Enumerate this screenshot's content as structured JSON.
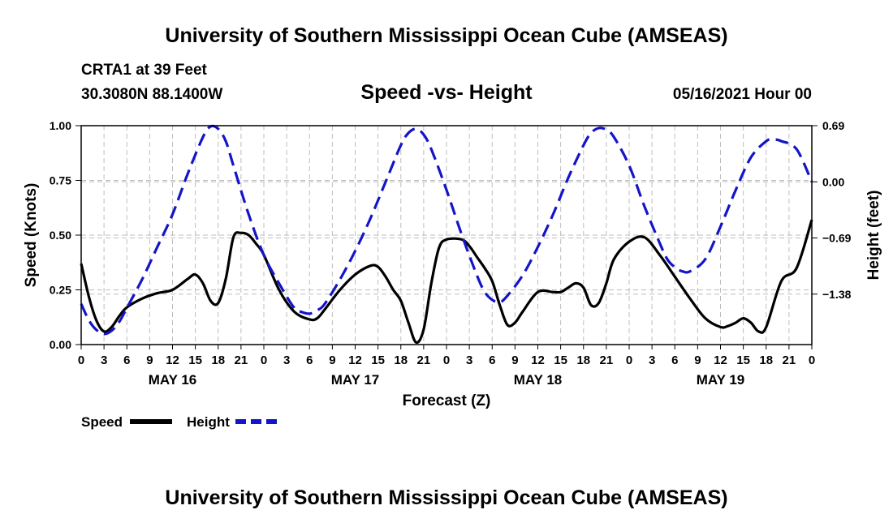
{
  "header": {
    "title": "University of Southern Mississippi Ocean Cube (AMSEAS)",
    "station": "CRTA1 at 39 Feet",
    "coords": "30.3080N  88.1400W",
    "plot_title": "Speed -vs- Height",
    "datetime": "05/16/2021 Hour 00"
  },
  "footer": {
    "title": "University of Southern Mississippi Ocean Cube (AMSEAS)"
  },
  "colors": {
    "speed": "#000000",
    "height": "#1414c8",
    "grid": "#bdbdbd"
  },
  "chart_data": {
    "type": "line",
    "title": "Speed -vs- Height",
    "xlabel": "Forecast (Z)",
    "ylabel_left": "Speed (Knots)",
    "ylabel_right": "Height (feet)",
    "x_range_hours": [
      0,
      96
    ],
    "x_tick_hours": [
      0,
      3,
      6,
      9,
      12,
      15,
      18,
      21,
      24,
      27,
      30,
      33,
      36,
      39,
      42,
      45,
      48,
      51,
      54,
      57,
      60,
      63,
      66,
      69,
      72,
      75,
      78,
      81,
      84,
      87,
      90,
      93,
      96
    ],
    "x_tick_labels": [
      "0",
      "3",
      "6",
      "9",
      "12",
      "15",
      "18",
      "21",
      "0",
      "3",
      "6",
      "9",
      "12",
      "15",
      "18",
      "21",
      "0",
      "3",
      "6",
      "9",
      "12",
      "15",
      "18",
      "21",
      "0",
      "3",
      "6",
      "9",
      "12",
      "15",
      "18",
      "21",
      "0"
    ],
    "day_labels": [
      {
        "hour": 12,
        "label": "MAY 16"
      },
      {
        "hour": 36,
        "label": "MAY 17"
      },
      {
        "hour": 60,
        "label": "MAY 18"
      },
      {
        "hour": 84,
        "label": "MAY 19"
      }
    ],
    "y_left": {
      "range": [
        0,
        1
      ],
      "ticks": [
        0,
        0.25,
        0.5,
        0.75,
        1
      ],
      "tick_labels": [
        "0.00",
        "0.25",
        "0.50",
        "0.75",
        "1.00"
      ]
    },
    "y_right": {
      "range": [
        -2.0,
        0.69
      ],
      "ticks": [
        -1.38,
        -0.69,
        0,
        0.69
      ],
      "tick_labels": [
        "−1.38",
        "−0.69",
        "0.00",
        "0.69"
      ]
    },
    "series": [
      {
        "name": "Speed",
        "axis": "left",
        "style": "solid",
        "x": [
          0,
          1,
          2,
          3,
          4,
          5,
          6,
          8,
          10,
          12,
          14,
          15,
          16,
          17,
          18,
          19,
          20,
          21,
          22,
          23,
          24,
          26,
          28,
          30,
          31,
          32,
          34,
          36,
          38,
          39,
          40,
          41,
          42,
          43,
          44,
          45,
          46,
          47,
          48,
          50,
          51,
          52,
          53,
          54,
          55,
          56,
          57,
          58,
          60,
          62,
          63,
          64,
          65,
          66,
          67,
          68,
          69,
          70,
          72,
          74,
          76,
          78,
          80,
          82,
          84,
          85,
          86,
          87,
          88,
          89,
          90,
          92,
          94,
          96
        ],
        "values": [
          0.37,
          0.22,
          0.11,
          0.06,
          0.08,
          0.13,
          0.17,
          0.21,
          0.235,
          0.25,
          0.3,
          0.32,
          0.28,
          0.2,
          0.19,
          0.3,
          0.49,
          0.51,
          0.5,
          0.46,
          0.41,
          0.25,
          0.15,
          0.115,
          0.12,
          0.16,
          0.25,
          0.32,
          0.36,
          0.355,
          0.31,
          0.25,
          0.2,
          0.1,
          0.01,
          0.07,
          0.28,
          0.44,
          0.48,
          0.48,
          0.45,
          0.4,
          0.35,
          0.29,
          0.18,
          0.09,
          0.1,
          0.15,
          0.24,
          0.24,
          0.24,
          0.26,
          0.28,
          0.26,
          0.18,
          0.19,
          0.28,
          0.39,
          0.47,
          0.49,
          0.41,
          0.31,
          0.21,
          0.12,
          0.08,
          0.085,
          0.1,
          0.12,
          0.1,
          0.06,
          0.08,
          0.29,
          0.35,
          0.57
        ]
      },
      {
        "name": "Height",
        "axis": "right",
        "style": "dashed",
        "x": [
          0,
          1,
          2,
          3,
          4,
          5,
          6,
          8,
          10,
          12,
          14,
          16,
          17,
          18,
          19,
          20,
          22,
          24,
          26,
          28,
          29,
          30,
          31,
          32,
          34,
          36,
          38,
          40,
          42,
          43,
          44,
          45,
          46,
          48,
          50,
          52,
          53,
          54,
          55,
          56,
          58,
          60,
          62,
          64,
          66,
          67,
          68,
          69,
          70,
          72,
          74,
          76,
          77,
          78,
          79,
          80,
          82,
          84,
          86,
          88,
          90,
          91,
          92,
          94,
          96
        ],
        "values": [
          -1.5,
          -1.7,
          -1.82,
          -1.87,
          -1.83,
          -1.72,
          -1.55,
          -1.2,
          -0.8,
          -0.4,
          0.1,
          0.55,
          0.68,
          0.65,
          0.5,
          0.2,
          -0.4,
          -0.9,
          -1.25,
          -1.55,
          -1.6,
          -1.62,
          -1.58,
          -1.5,
          -1.2,
          -0.85,
          -0.45,
          0,
          0.45,
          0.6,
          0.65,
          0.58,
          0.4,
          -0.1,
          -0.65,
          -1.15,
          -1.35,
          -1.45,
          -1.48,
          -1.4,
          -1.15,
          -0.8,
          -0.4,
          0.05,
          0.45,
          0.6,
          0.66,
          0.64,
          0.55,
          0.2,
          -0.3,
          -0.75,
          -0.95,
          -1.05,
          -1.1,
          -1.1,
          -0.95,
          -0.55,
          -0.1,
          0.3,
          0.5,
          0.52,
          0.5,
          0.4,
          0.0
        ]
      }
    ],
    "legend": [
      {
        "label": "Speed",
        "style": "solid"
      },
      {
        "label": "Height",
        "style": "dashed"
      }
    ]
  }
}
